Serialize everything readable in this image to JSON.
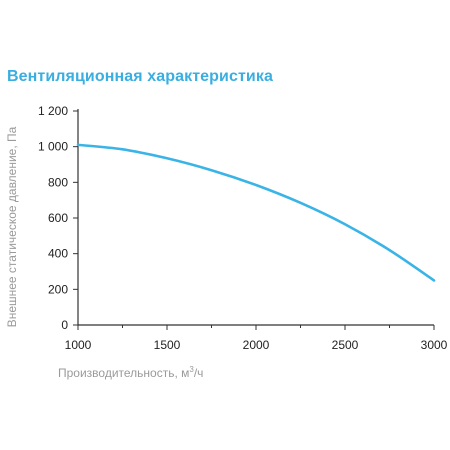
{
  "colors": {
    "title": "#3aaee0",
    "curve": "#3ab4e6",
    "axis": "#333333",
    "axis_label": "#9a9a9a"
  },
  "chart_data": {
    "type": "line",
    "title": "Вентиляционная характеристика",
    "xlabel": "Производительность, м",
    "xlabel_sup": "3",
    "xlabel_tail": "/ч",
    "ylabel": "Внешнее статическое давление, Па",
    "xlim": [
      1000,
      3000
    ],
    "ylim": [
      0,
      1200
    ],
    "x_ticks": [
      1000,
      1500,
      2000,
      2500,
      3000
    ],
    "x_minor_ticks": [
      1250,
      1750,
      2250,
      2750
    ],
    "y_ticks": [
      0,
      200,
      400,
      600,
      800,
      1000,
      1200
    ],
    "y_tick_labels": [
      "0",
      "200",
      "400",
      "600",
      "800",
      "1 000",
      "1 200"
    ],
    "grid": false,
    "series": [
      {
        "x": [
          1000,
          1250,
          1500,
          1750,
          2000,
          2250,
          2500,
          2750,
          3000
        ],
        "y": [
          1010,
          985,
          935,
          868,
          785,
          685,
          565,
          420,
          250
        ]
      }
    ]
  }
}
